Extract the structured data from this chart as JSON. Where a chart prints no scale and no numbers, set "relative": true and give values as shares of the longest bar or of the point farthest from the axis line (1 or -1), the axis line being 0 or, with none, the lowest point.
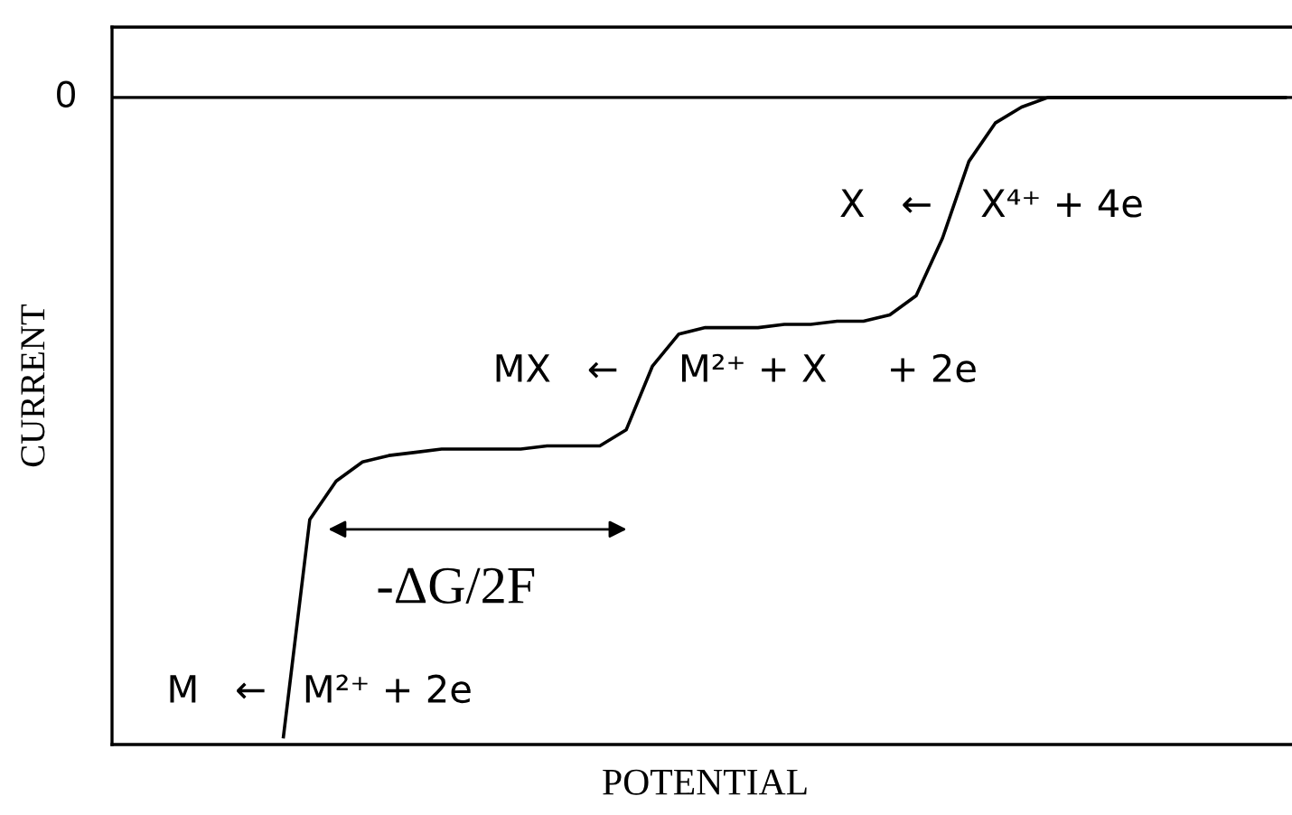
{
  "chart_data": {
    "type": "line",
    "relative": true,
    "xlabel": "POTENTIAL",
    "ylabel": "CURRENT",
    "categories": [
      null,
      null,
      null,
      null,
      null,
      null,
      null,
      null,
      null,
      null,
      null,
      null,
      null,
      null,
      null,
      null,
      null,
      null,
      null,
      null,
      null,
      null,
      null,
      null,
      null,
      null,
      null,
      null,
      null,
      null,
      null,
      null,
      null,
      null,
      null,
      null,
      null,
      null,
      null,
      null,
      null,
      null,
      null,
      null,
      null
    ],
    "series": [
      {
        "color": "#000000",
        "values": [
          null,
          null,
          null,
          null,
          null,
          null,
          -1,
          -0.66,
          -0.6,
          -0.57,
          -0.56,
          -0.555,
          -0.55,
          -0.55,
          -0.55,
          -0.55,
          -0.545,
          -0.545,
          -0.545,
          -0.52,
          -0.42,
          -0.37,
          -0.36,
          -0.36,
          -0.36,
          -0.355,
          -0.355,
          -0.35,
          -0.35,
          -0.34,
          -0.31,
          -0.22,
          -0.1,
          -0.04,
          -0.015,
          0,
          0,
          0,
          0,
          0,
          0,
          0,
          0,
          0,
          0
        ]
      }
    ],
    "ref_lines": [
      {
        "axis": "y",
        "value": 0,
        "label": "0",
        "color": "#000000"
      }
    ],
    "annotations": [
      "M   ←   M²⁺ + 2e",
      "MX   ←     M²⁺ + X     + 2e",
      "X   ←    X⁴⁺ + 4e",
      "-ΔG/2F"
    ]
  }
}
